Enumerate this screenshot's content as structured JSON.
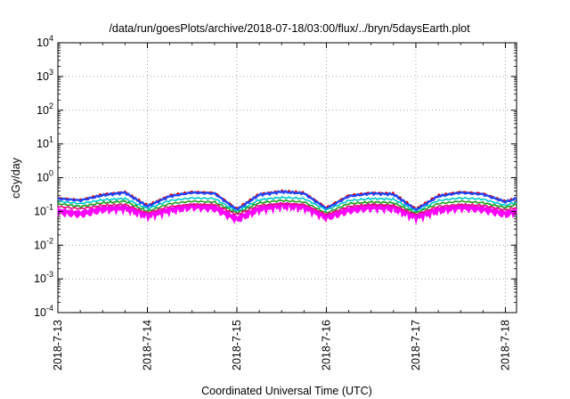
{
  "chart_data": {
    "type": "line",
    "title": "/data/run/goesPlots/archive/2018-07-18/03:00/flux/../bryn/5daysEarth.plot",
    "xlabel": "Coordinated Universal Time (UTC)",
    "ylabel": "cGy/day",
    "yscale": "log",
    "ylim": [
      0.0001,
      10000
    ],
    "y_ticks": [
      {
        "mantissa": "10",
        "exp": "-4",
        "value": 0.0001
      },
      {
        "mantissa": "10",
        "exp": "-3",
        "value": 0.001
      },
      {
        "mantissa": "10",
        "exp": "-2",
        "value": 0.01
      },
      {
        "mantissa": "10",
        "exp": "-1",
        "value": 0.1
      },
      {
        "mantissa": "10",
        "exp": "0",
        "value": 1
      },
      {
        "mantissa": "10",
        "exp": "1",
        "value": 10
      },
      {
        "mantissa": "10",
        "exp": "2",
        "value": 100
      },
      {
        "mantissa": "10",
        "exp": "3",
        "value": 1000
      },
      {
        "mantissa": "10",
        "exp": "4",
        "value": 10000
      }
    ],
    "xlim": [
      "2018-07-13 00:00",
      "2018-07-18 03:00"
    ],
    "x_ticks": [
      "2018-7-13",
      "2018-7-14",
      "2018-7-15",
      "2018-7-16",
      "2018-7-17",
      "2018-7-18"
    ],
    "grid": true,
    "x_days": [
      0,
      0.25,
      0.5,
      0.75,
      1.0,
      1.25,
      1.5,
      1.75,
      2.0,
      2.25,
      2.5,
      2.75,
      3.0,
      3.25,
      3.5,
      3.75,
      4.0,
      4.25,
      4.5,
      4.75,
      5.0,
      5.125
    ],
    "series": [
      {
        "color": "#ff00ff",
        "fill": true,
        "values": [
          0.12,
          0.1,
          0.14,
          0.15,
          0.09,
          0.13,
          0.17,
          0.15,
          0.07,
          0.14,
          0.18,
          0.16,
          0.08,
          0.13,
          0.16,
          0.15,
          0.08,
          0.13,
          0.16,
          0.14,
          0.1,
          0.12
        ]
      },
      {
        "color": "#d00000",
        "values": [
          0.25,
          0.22,
          0.32,
          0.38,
          0.15,
          0.3,
          0.38,
          0.36,
          0.12,
          0.33,
          0.4,
          0.36,
          0.13,
          0.3,
          0.36,
          0.34,
          0.12,
          0.3,
          0.38,
          0.34,
          0.2,
          0.25
        ]
      },
      {
        "color": "#2244ff",
        "values": [
          0.24,
          0.21,
          0.3,
          0.36,
          0.14,
          0.28,
          0.36,
          0.34,
          0.11,
          0.31,
          0.38,
          0.34,
          0.12,
          0.28,
          0.34,
          0.32,
          0.11,
          0.28,
          0.36,
          0.32,
          0.19,
          0.24
        ]
      },
      {
        "color": "#00c8c8",
        "values": [
          0.2,
          0.17,
          0.22,
          0.24,
          0.12,
          0.21,
          0.25,
          0.24,
          0.1,
          0.22,
          0.26,
          0.24,
          0.11,
          0.21,
          0.24,
          0.23,
          0.1,
          0.21,
          0.25,
          0.23,
          0.15,
          0.19
        ]
      },
      {
        "color": "#20a020",
        "values": [
          0.17,
          0.14,
          0.18,
          0.2,
          0.1,
          0.17,
          0.2,
          0.19,
          0.09,
          0.18,
          0.21,
          0.19,
          0.09,
          0.17,
          0.19,
          0.18,
          0.09,
          0.17,
          0.2,
          0.18,
          0.13,
          0.16
        ]
      },
      {
        "color": "#e0107a",
        "values": [
          0.14,
          0.12,
          0.15,
          0.16,
          0.09,
          0.14,
          0.16,
          0.16,
          0.08,
          0.15,
          0.17,
          0.16,
          0.08,
          0.14,
          0.16,
          0.15,
          0.08,
          0.14,
          0.16,
          0.15,
          0.11,
          0.13
        ]
      }
    ]
  }
}
